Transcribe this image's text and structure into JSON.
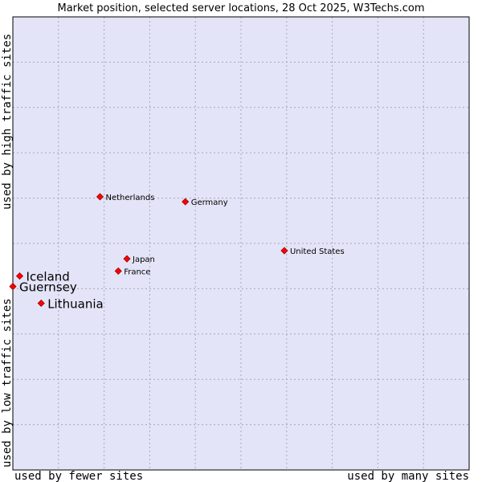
{
  "chart_data": {
    "type": "scatter",
    "title": "Market position, selected server locations, 28 Oct 2025, W3Techs.com",
    "xlabel_left": "used by fewer sites",
    "xlabel_right": "used by many sites",
    "ylabel_bottom": "used by low traffic sites",
    "ylabel_top": "used by high traffic sites",
    "xlim": [
      0,
      100
    ],
    "ylim": [
      0,
      100
    ],
    "grid": true,
    "colors": {
      "plot_bg": "#e4e4f8",
      "grid": "#a8a8b8",
      "border": "#000000",
      "point": "#ff0000",
      "point_outline": "#990000"
    },
    "points": [
      {
        "name": "Netherlands",
        "x": 19.1,
        "y": 60.3,
        "size": "small"
      },
      {
        "name": "Germany",
        "x": 37.8,
        "y": 59.2,
        "size": "small"
      },
      {
        "name": "United States",
        "x": 59.5,
        "y": 48.4,
        "size": "small"
      },
      {
        "name": "Japan",
        "x": 25.0,
        "y": 46.6,
        "size": "small"
      },
      {
        "name": "France",
        "x": 23.1,
        "y": 43.9,
        "size": "small"
      },
      {
        "name": "Iceland",
        "x": 1.5,
        "y": 42.8,
        "size": "large"
      },
      {
        "name": "Guernsey",
        "x": 0.0,
        "y": 40.5,
        "size": "large"
      },
      {
        "name": "Lithuania",
        "x": 6.2,
        "y": 36.8,
        "size": "large"
      }
    ]
  }
}
